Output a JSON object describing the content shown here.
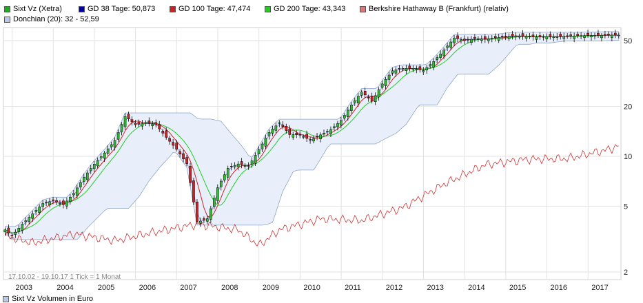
{
  "legend": {
    "items": [
      {
        "label": "Sixt Vz (Xetra)",
        "color": "#22aa22"
      },
      {
        "label": "GD 38 Tage: 50,873",
        "color": "#0000aa"
      },
      {
        "label": "GD 100 Tage: 47,474",
        "color": "#cc2222"
      },
      {
        "label": "GD 200 Tage: 43,343",
        "color": "#22cc22"
      },
      {
        "label": "Berkshire Hathaway B (Frankfurt) (relativ)",
        "color": "#dd7777"
      },
      {
        "label": "Donchian (20): 32 - 52,59",
        "color": "#b8c8e8"
      }
    ]
  },
  "note": "17.10.02 - 19.10.17   1 Tick = 1 Monat",
  "volume_label": "Sixt Vz Volumen in Euro",
  "chart_data": {
    "type": "candlestick",
    "title": "Sixt Vz (Xetra)",
    "x_tick_labels": [
      "2003",
      "2004",
      "2005",
      "2006",
      "2007",
      "2008",
      "2009",
      "2010",
      "2011",
      "2012",
      "2013",
      "2014",
      "2015",
      "2016",
      "2017"
    ],
    "y_scale": "log",
    "y_ticks": [
      2,
      5,
      10,
      20,
      50
    ],
    "ylim": [
      1.8,
      60
    ],
    "xlim": [
      2002.79,
      2017.8
    ],
    "series": [
      {
        "name": "Sixt Vz (Xetra)",
        "kind": "candles",
        "x": [
          2002.83,
          2003.0,
          2003.25,
          2003.5,
          2003.75,
          2004.0,
          2004.25,
          2004.5,
          2004.75,
          2005.0,
          2005.25,
          2005.5,
          2005.75,
          2006.0,
          2006.25,
          2006.5,
          2006.75,
          2007.0,
          2007.25,
          2007.5,
          2007.75,
          2008.0,
          2008.25,
          2008.5,
          2008.75,
          2009.0,
          2009.25,
          2009.5,
          2009.75,
          2010.0,
          2010.25,
          2010.5,
          2010.75,
          2011.0,
          2011.25,
          2011.5,
          2011.75,
          2012.0,
          2012.25,
          2012.5,
          2012.75,
          2013.0,
          2013.25,
          2013.5,
          2013.75,
          2014.0,
          2014.25,
          2014.5,
          2014.75,
          2015.0,
          2015.25,
          2015.5,
          2015.75,
          2016.0,
          2016.25,
          2016.5,
          2016.75,
          2017.0,
          2017.25,
          2017.5,
          2017.75
        ],
        "values": [
          3.6,
          3.3,
          3.9,
          4.5,
          5.2,
          5.4,
          5.1,
          6.0,
          7.5,
          9.0,
          10.5,
          12.5,
          17.5,
          15.5,
          16.0,
          15.5,
          13.0,
          11.0,
          9.0,
          4.0,
          4.2,
          6.5,
          8.5,
          9.0,
          8.7,
          11.0,
          14.0,
          16.0,
          13.5,
          13.5,
          12.5,
          13.5,
          14.5,
          16.5,
          20.5,
          24.5,
          21.5,
          27.5,
          33.0,
          34.0,
          34.0,
          33.0,
          37.5,
          44.0,
          52.0,
          50.0,
          51.5,
          51.0,
          52.0,
          53.0,
          53.5,
          53.0,
          52.5,
          52.8,
          53.0,
          53.2,
          53.5,
          53.7,
          53.8,
          54.0,
          54.0
        ]
      },
      {
        "name": "GD 38 Tage",
        "kind": "line",
        "last": 50.873
      },
      {
        "name": "GD 100 Tage",
        "kind": "line",
        "last": 47.474
      },
      {
        "name": "GD 200 Tage",
        "kind": "line",
        "last": 43.343
      },
      {
        "name": "Berkshire Hathaway B (Frankfurt) (relativ)",
        "kind": "line",
        "x": [
          2002.83,
          2003.5,
          2004.5,
          2005.5,
          2006.5,
          2007.5,
          2008.5,
          2009.0,
          2009.5,
          2010.5,
          2011.5,
          2012.5,
          2013.5,
          2014.5,
          2015.5,
          2016.5,
          2017.5,
          2017.75
        ],
        "values": [
          3.3,
          3.0,
          3.4,
          3.1,
          3.5,
          3.9,
          3.6,
          2.9,
          3.6,
          4.2,
          4.1,
          4.9,
          6.8,
          8.9,
          9.6,
          9.7,
          11.0,
          11.6
        ]
      },
      {
        "name": "Donchian (20)",
        "kind": "band",
        "lower_last": 32,
        "upper_last": 52.59
      }
    ]
  }
}
